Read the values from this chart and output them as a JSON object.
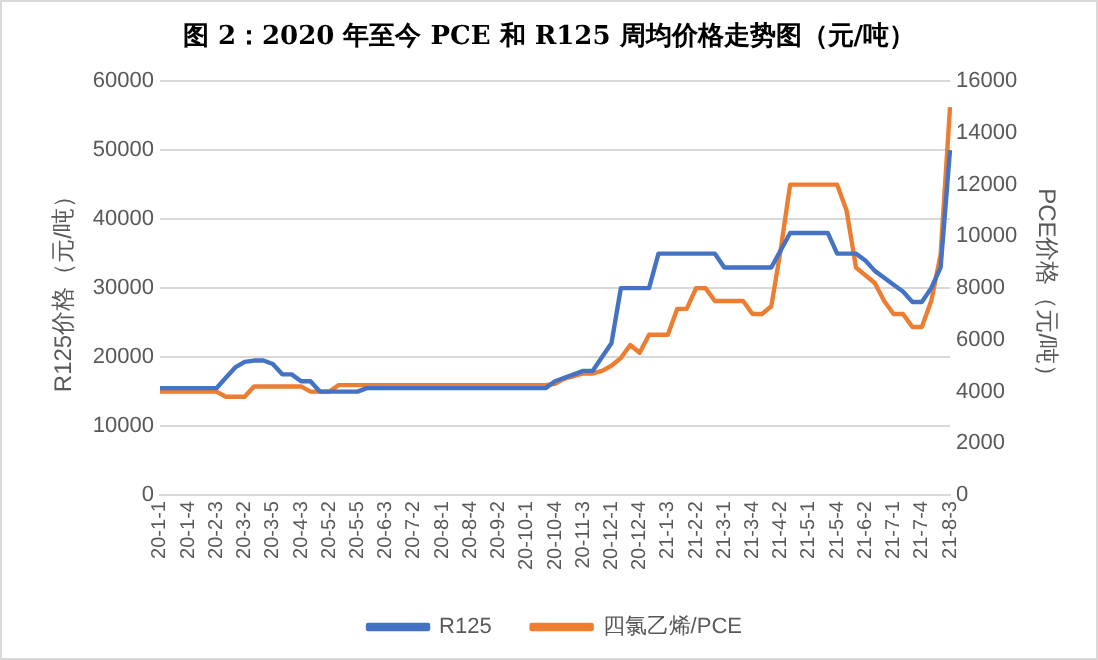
{
  "chart_data": {
    "type": "line",
    "title": "图 2：2020 年至今 PCE 和 R125 周均价格走势图（元/吨）",
    "ylabel": "R125价格（元/吨）",
    "y2label": "PCE价格（元/吨）",
    "categories": [
      "20-1-1",
      null,
      null,
      "20-1-4",
      null,
      null,
      "20-2-3",
      null,
      null,
      "20-3-2",
      null,
      null,
      "20-3-5",
      null,
      null,
      "20-4-3",
      null,
      null,
      "20-5-2",
      null,
      null,
      "20-5-5",
      null,
      null,
      "20-6-3",
      null,
      null,
      "20-7-2",
      null,
      null,
      "20-8-1",
      null,
      null,
      "20-8-4",
      null,
      null,
      "20-9-2",
      null,
      null,
      "20-10-1",
      null,
      null,
      "20-10-4",
      null,
      null,
      "20-11-3",
      null,
      null,
      "20-12-1",
      null,
      null,
      "20-12-4",
      null,
      null,
      "21-1-3",
      null,
      null,
      "21-2-2",
      null,
      null,
      "21-3-1",
      null,
      null,
      "21-3-4",
      null,
      null,
      "21-4-2",
      null,
      null,
      "21-5-1",
      null,
      null,
      "21-5-4",
      null,
      null,
      "21-6-2",
      null,
      null,
      "21-7-1",
      null,
      null,
      "21-7-4",
      null,
      null,
      "21-8-3"
    ],
    "series": [
      {
        "name": "R125",
        "color": "#4472c4",
        "values": [
          15500,
          15500,
          15500,
          15500,
          15500,
          15500,
          15500,
          17000,
          18500,
          19300,
          19500,
          19500,
          19000,
          17500,
          17500,
          16500,
          16500,
          15000,
          15000,
          15000,
          15000,
          15000,
          15500,
          15500,
          15500,
          15500,
          15500,
          15500,
          15500,
          15500,
          15500,
          15500,
          15500,
          15500,
          15500,
          15500,
          15500,
          15500,
          15500,
          15500,
          15500,
          15500,
          16500,
          17000,
          17500,
          18000,
          18000,
          20000,
          22000,
          30000,
          30000,
          30000,
          30000,
          35000,
          35000,
          35000,
          35000,
          35000,
          35000,
          35000,
          33000,
          33000,
          33000,
          33000,
          33000,
          33000,
          35500,
          38000,
          38000,
          38000,
          38000,
          38000,
          35000,
          35000,
          35000,
          34000,
          32500,
          31500,
          30500,
          29500,
          28000,
          28000,
          30000,
          33000,
          50000
        ]
      },
      {
        "name": "四氯乙烯/PCE",
        "color": "#ed7d31",
        "axis": "y2",
        "values": [
          4000,
          4000,
          4000,
          4000,
          4000,
          4000,
          4000,
          3800,
          3800,
          3800,
          4200,
          4200,
          4200,
          4200,
          4200,
          4200,
          4000,
          4000,
          4000,
          4250,
          4250,
          4250,
          4250,
          4250,
          4250,
          4250,
          4250,
          4250,
          4250,
          4250,
          4250,
          4250,
          4250,
          4250,
          4250,
          4250,
          4250,
          4250,
          4250,
          4250,
          4250,
          4250,
          4300,
          4500,
          4600,
          4700,
          4700,
          4800,
          5000,
          5300,
          5800,
          5500,
          6200,
          6200,
          6200,
          7200,
          7200,
          8000,
          8000,
          7500,
          7500,
          7500,
          7500,
          7000,
          7000,
          7300,
          9500,
          12000,
          12000,
          12000,
          12000,
          12000,
          12000,
          11000,
          8800,
          8500,
          8200,
          7500,
          7000,
          7000,
          6500,
          6500,
          7500,
          9300,
          15000
        ]
      }
    ],
    "ylim": [
      0,
      60000
    ],
    "yticks": [
      0,
      10000,
      20000,
      30000,
      40000,
      50000,
      60000
    ],
    "y2lim": [
      0,
      16000
    ],
    "y2ticks": [
      0,
      2000,
      4000,
      6000,
      8000,
      10000,
      12000,
      14000,
      16000
    ],
    "grid": "y",
    "legend": "bottom",
    "marker": "none",
    "line_style": "solid"
  }
}
